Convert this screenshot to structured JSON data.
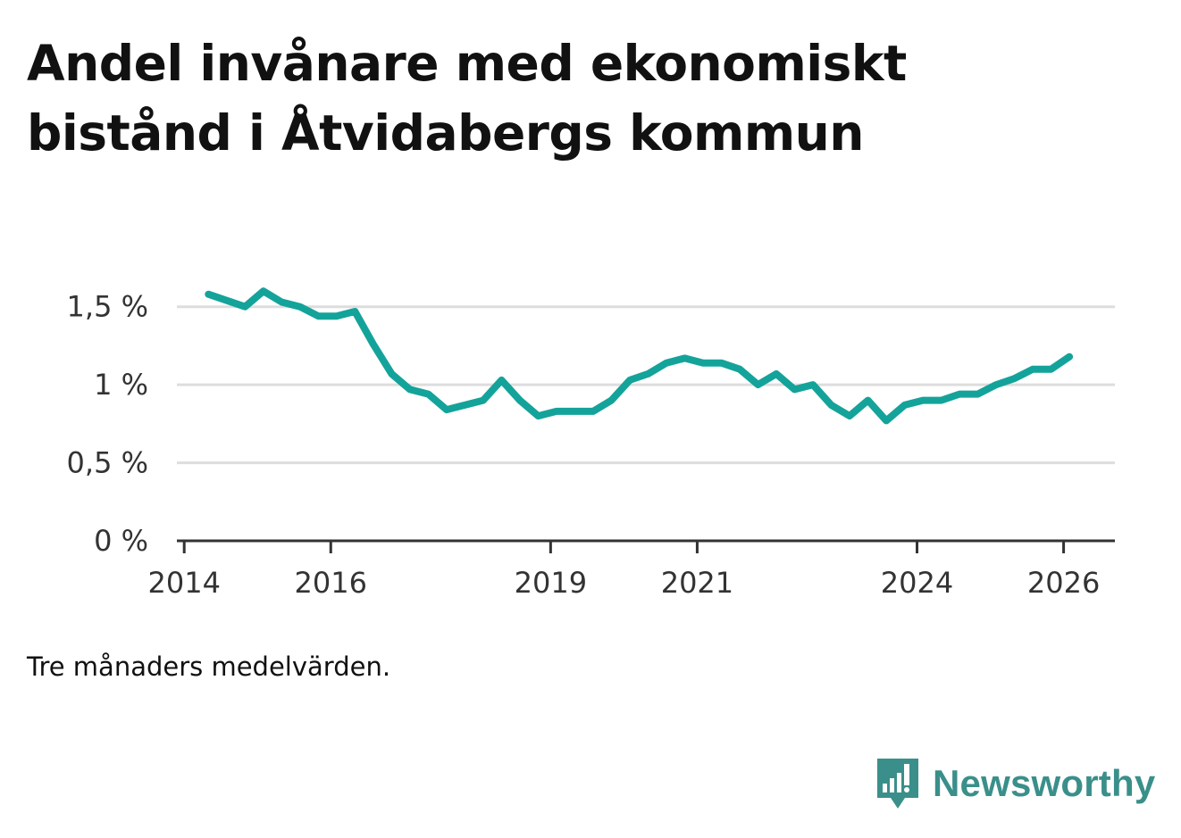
{
  "title": "Andel invånare med ekonomiskt bistånd i Åtvidabergs kommun",
  "footnote": "Tre månaders medelvärden.",
  "brand": {
    "name": "Newsworthy",
    "icon": "newsworthy-logo-icon",
    "color": "#3a8f8a"
  },
  "colors": {
    "line": "#14a39a",
    "grid": "#dddddd",
    "axis": "#333333",
    "tick_text": "#333333"
  },
  "chart_data": {
    "type": "line",
    "title": "Andel invånare med ekonomiskt bistånd i Åtvidabergs kommun",
    "xlabel": "",
    "ylabel": "",
    "xlim": [
      2013.9,
      2026.7
    ],
    "ylim": [
      0,
      1.75
    ],
    "x_ticks": [
      2014,
      2016,
      2019,
      2021,
      2024,
      2026
    ],
    "x_tick_labels": [
      "2014",
      "2016",
      "2019",
      "2021",
      "2024",
      "2026"
    ],
    "y_ticks": [
      0,
      0.5,
      1,
      1.5
    ],
    "y_tick_labels": [
      "0 %",
      "0,5 %",
      "1 %",
      "1,5 %"
    ],
    "grid": true,
    "series": [
      {
        "name": "Andel invånare med ekonomiskt bistånd",
        "x": [
          2014.33,
          2014.58,
          2014.83,
          2015.08,
          2015.33,
          2015.58,
          2015.83,
          2016.08,
          2016.33,
          2016.58,
          2016.83,
          2017.08,
          2017.33,
          2017.58,
          2017.83,
          2018.08,
          2018.33,
          2018.58,
          2018.83,
          2019.08,
          2019.33,
          2019.58,
          2019.83,
          2020.08,
          2020.33,
          2020.58,
          2020.83,
          2021.08,
          2021.33,
          2021.58,
          2021.83,
          2022.08,
          2022.33,
          2022.58,
          2022.83,
          2023.08,
          2023.33,
          2023.58,
          2023.83,
          2024.08,
          2024.33,
          2024.58,
          2024.83,
          2025.08,
          2025.33,
          2025.58,
          2025.83,
          2026.08
        ],
        "values": [
          1.58,
          1.54,
          1.5,
          1.6,
          1.53,
          1.5,
          1.44,
          1.44,
          1.47,
          1.26,
          1.07,
          0.97,
          0.94,
          0.84,
          0.87,
          0.9,
          1.03,
          0.9,
          0.8,
          0.83,
          0.83,
          0.83,
          0.9,
          1.03,
          1.07,
          1.14,
          1.17,
          1.14,
          1.14,
          1.1,
          1.0,
          1.07,
          0.97,
          1.0,
          0.87,
          0.8,
          0.9,
          0.77,
          0.87,
          0.9,
          0.9,
          0.94,
          0.94,
          1.0,
          1.04,
          1.1,
          1.1,
          1.18
        ]
      }
    ]
  }
}
